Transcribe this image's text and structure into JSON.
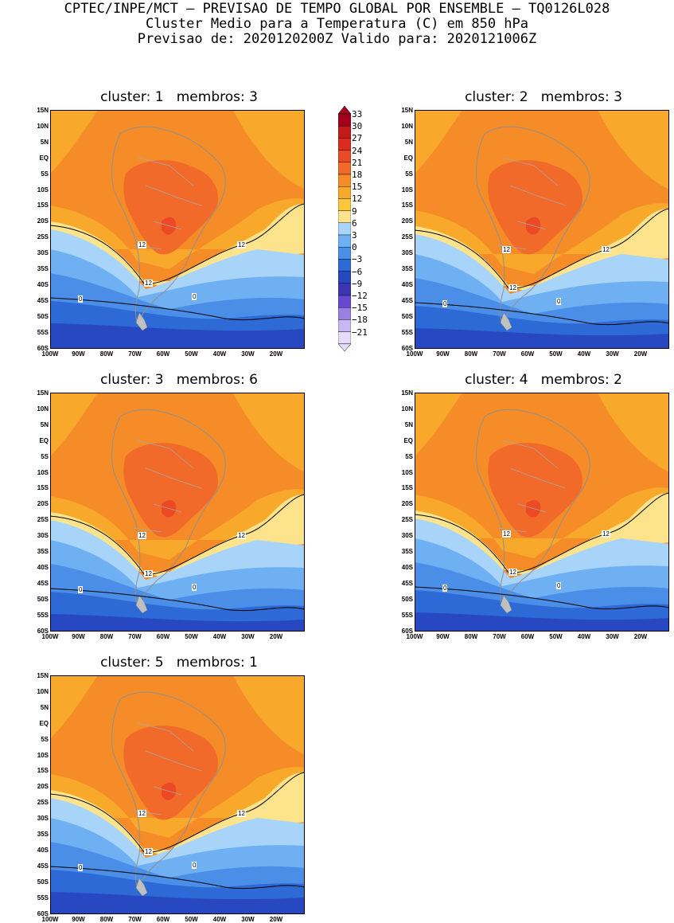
{
  "header": {
    "line1": "CPTEC/INPE/MCT – PREVISAO DE TEMPO GLOBAL POR ENSEMBLE – TQ0126L028",
    "line2": "Cluster Medio para a Temperatura (C) em 850 hPa",
    "line3": "Previsao de: 2020120200Z    Valido para: 2020121006Z"
  },
  "axes": {
    "lat_labels": [
      "15N",
      "10N",
      "5N",
      "EQ",
      "5S",
      "10S",
      "15S",
      "20S",
      "25S",
      "30S",
      "35S",
      "40S",
      "45S",
      "50S",
      "55S",
      "60S"
    ],
    "lon_labels": [
      "100W",
      "90W",
      "80W",
      "70W",
      "60W",
      "50W",
      "40W",
      "30W",
      "20W"
    ]
  },
  "colorbar": {
    "labels": [
      "33",
      "30",
      "27",
      "24",
      "21",
      "18",
      "15",
      "12",
      "9",
      "6",
      "3",
      "0",
      "−3",
      "−6",
      "−9",
      "−12",
      "−15",
      "−18",
      "−21"
    ],
    "colors": [
      "#a0001e",
      "#c41a1a",
      "#dc2c20",
      "#ec4a24",
      "#f26a2a",
      "#f58c28",
      "#f8a82a",
      "#fbc63c",
      "#fde48c",
      "#a8d4fa",
      "#6eb0f2",
      "#4a8ee8",
      "#2e6ad6",
      "#2848c2",
      "#3c34b0",
      "#6848d0",
      "#9a80e4",
      "#c8b8f2",
      "#e6dcfa"
    ]
  },
  "contour_labels": {
    "warm": "12",
    "cold": "0"
  },
  "panels": [
    {
      "id": "1",
      "title": "cluster: 1   membros: 3"
    },
    {
      "id": "2",
      "title": "cluster: 2   membros: 3"
    },
    {
      "id": "3",
      "title": "cluster: 3   membros: 6"
    },
    {
      "id": "4",
      "title": "cluster: 4   membros: 2"
    },
    {
      "id": "5",
      "title": "cluster: 5   membros: 1"
    }
  ]
}
